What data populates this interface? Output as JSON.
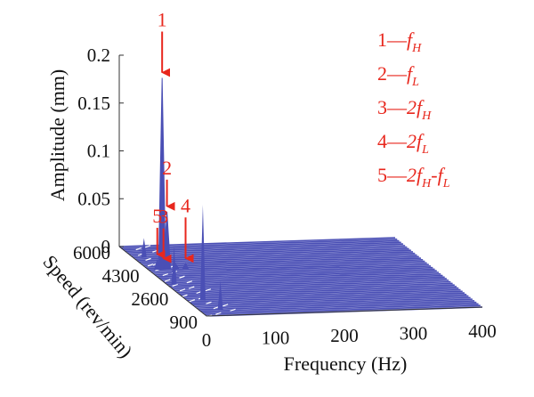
{
  "chart_data": {
    "type": "waterfall-3d",
    "xlabel": "Frequency (Hz)",
    "ylabel": "Speed (rev/min)",
    "zlabel": "Amplitude (mm)",
    "x_ticks": [
      "0",
      "100",
      "200",
      "300",
      "400"
    ],
    "y_ticks": [
      "900",
      "2600",
      "4300",
      "6000"
    ],
    "z_ticks": [
      "0",
      "0.05",
      "0.1",
      "0.15",
      "0.2"
    ],
    "xlim": [
      0,
      400
    ],
    "ylim": [
      900,
      6000
    ],
    "zlim": [
      0,
      0.2
    ],
    "grid": false,
    "series_color": "#4a4fb5",
    "annotation_color": "#e8271d",
    "peaks": [
      {
        "id": "1",
        "frequency": 20,
        "speed": 4300,
        "amplitude": 0.2
      },
      {
        "id": "2",
        "frequency": 27,
        "speed": 4300,
        "amplitude": 0.06
      },
      {
        "id": "3",
        "frequency": 40,
        "speed": 4300,
        "amplitude": 0.005
      },
      {
        "id": "4",
        "frequency": 54,
        "speed": 4300,
        "amplitude": 0.005
      },
      {
        "id": "5",
        "frequency": 13,
        "speed": 4300,
        "amplitude": 0.01
      }
    ],
    "legend": [
      {
        "num": "1",
        "base": "f",
        "sub": "H"
      },
      {
        "num": "2",
        "base": "f",
        "sub": "L"
      },
      {
        "num": "3",
        "base": "2f",
        "sub": "H"
      },
      {
        "num": "4",
        "base": "2f",
        "sub": "L"
      },
      {
        "num": "5",
        "base": "2f",
        "sub": "H",
        "rest": "-f",
        "rest_sub": "L"
      }
    ]
  }
}
